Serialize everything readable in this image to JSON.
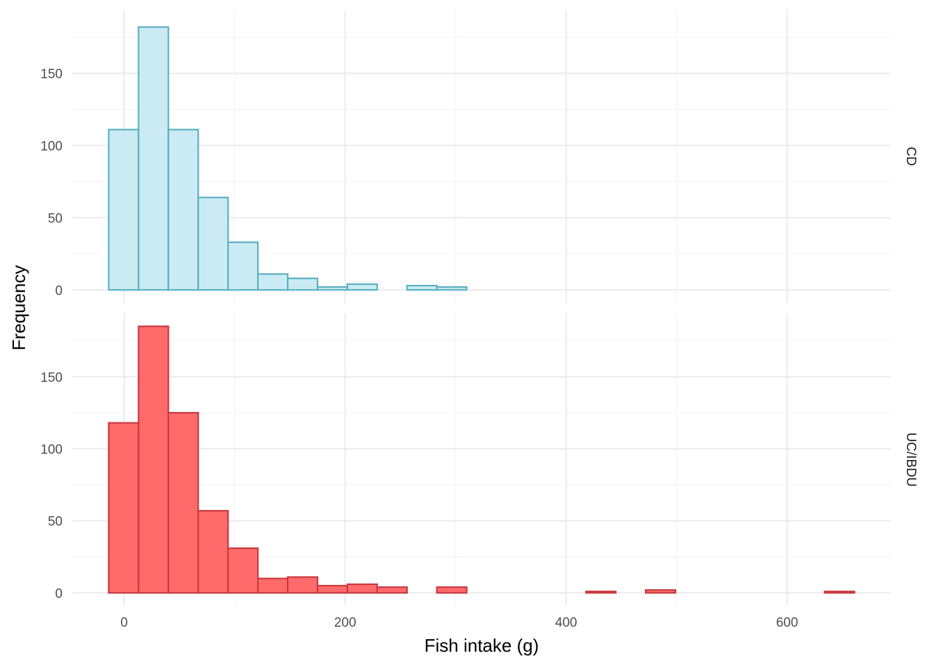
{
  "chart_data": {
    "type": "bar",
    "subtype": "faceted-histogram",
    "xlabel": "Fish intake (g)",
    "ylabel": "Frequency",
    "xlim": [
      -47,
      694
    ],
    "x_ticks": [
      0,
      200,
      400,
      600
    ],
    "bin_width": 27,
    "bin_start": -14,
    "grid": true,
    "legend": "none",
    "panels": [
      {
        "name": "CD",
        "fill": "#cbebf4",
        "stroke": "#5bb0c0",
        "ylim": [
          -9,
          194
        ],
        "y_ticks": [
          0,
          50,
          100,
          150
        ],
        "values": [
          111,
          182,
          111,
          64,
          33,
          11,
          8,
          2,
          4,
          0,
          3,
          2,
          0,
          0,
          0,
          0,
          0,
          0,
          0,
          0,
          0,
          0,
          0,
          0,
          0
        ]
      },
      {
        "name": "UC/IBDU",
        "fill": "#ff6b6b",
        "stroke": "#c8393f",
        "ylim": [
          -9,
          194
        ],
        "y_ticks": [
          0,
          50,
          100,
          150
        ],
        "values": [
          118,
          185,
          125,
          57,
          31,
          10,
          11,
          5,
          6,
          4,
          0,
          4,
          0,
          0,
          0,
          0,
          1,
          0,
          2,
          0,
          0,
          0,
          0,
          0,
          1
        ]
      }
    ]
  }
}
